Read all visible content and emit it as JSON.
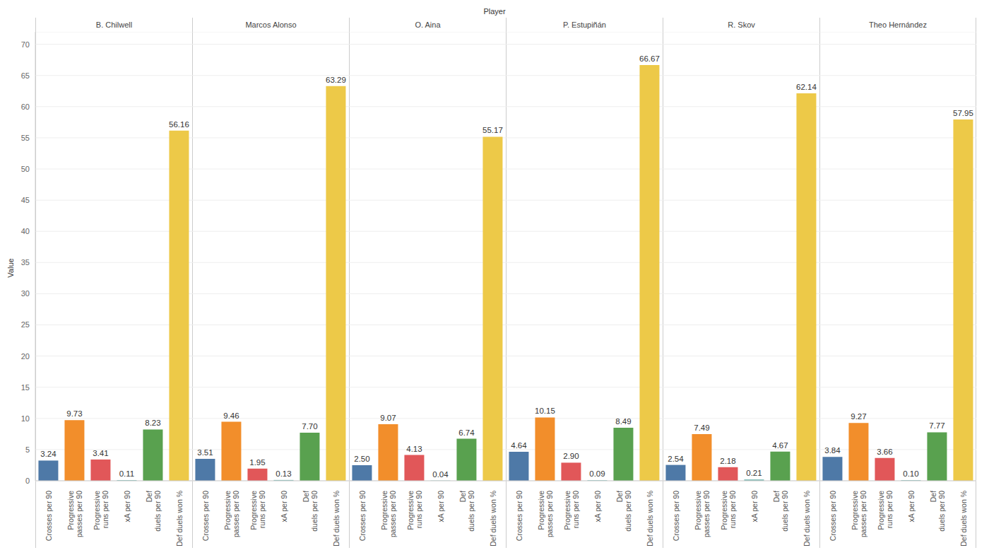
{
  "chart_data": {
    "type": "bar",
    "facet_title": "Player",
    "y_label": "Value",
    "categories": [
      "Crosses per 90",
      "Progressive passes per 90",
      "Progressive runs per 90",
      "xA per 90",
      "Def duels per 90",
      "Def duels won %"
    ],
    "colors": [
      "#4e79a7",
      "#f28e2b",
      "#e15759",
      "#76b7b2",
      "#59a14f",
      "#edc948"
    ],
    "facets": [
      {
        "name": "B. Chilwell",
        "values": [
          3.24,
          9.73,
          3.41,
          0.11,
          8.23,
          56.16
        ],
        "value_labels": [
          "3.24",
          "9.73",
          "3.41",
          "0.11",
          "8.23",
          "56.16"
        ]
      },
      {
        "name": "Marcos Alonso",
        "values": [
          3.51,
          9.46,
          1.95,
          0.13,
          7.7,
          63.29
        ],
        "value_labels": [
          "3.51",
          "9.46",
          "1.95",
          "0.13",
          "7.70",
          "63.29"
        ]
      },
      {
        "name": "O. Aina",
        "values": [
          2.5,
          9.07,
          4.13,
          0.04,
          6.74,
          55.17
        ],
        "value_labels": [
          "2.50",
          "9.07",
          "4.13",
          "0.04",
          "6.74",
          "55.17"
        ]
      },
      {
        "name": "P. Estupiñán",
        "values": [
          4.64,
          10.15,
          2.9,
          0.09,
          8.49,
          66.67
        ],
        "value_labels": [
          "4.64",
          "10.15",
          "2.90",
          "0.09",
          "8.49",
          "66.67"
        ]
      },
      {
        "name": "R. Skov",
        "values": [
          2.54,
          7.49,
          2.18,
          0.21,
          4.67,
          62.14
        ],
        "value_labels": [
          "2.54",
          "7.49",
          "2.18",
          "0.21",
          "4.67",
          "62.14"
        ]
      },
      {
        "name": "Theo Hernández",
        "values": [
          3.84,
          9.27,
          3.66,
          0.1,
          7.77,
          57.95
        ],
        "value_labels": [
          "3.84",
          "9.27",
          "3.66",
          "0.10",
          "7.77",
          "57.95"
        ]
      }
    ],
    "ylim": [
      0,
      72
    ],
    "yticks": [
      0,
      5,
      10,
      15,
      20,
      25,
      30,
      35,
      40,
      45,
      50,
      55,
      60,
      65,
      70
    ],
    "grid": true,
    "data_labels": true
  }
}
